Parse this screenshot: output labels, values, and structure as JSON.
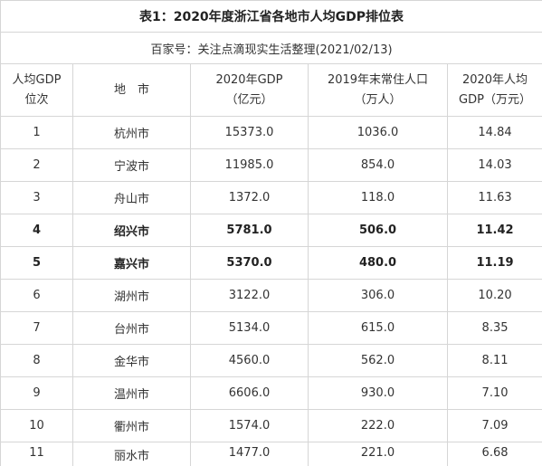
{
  "title": "表1：2020年度浙江省各地市人均GDP排位表",
  "source": "百家号：关注点滴现实生活整理(2021/02/13)",
  "headers": [
    [
      "人均GDP",
      "位次"
    ],
    [
      "地　市"
    ],
    [
      "2020年GDP",
      "（亿元）"
    ],
    [
      "2019年末常住人口",
      "（万人）"
    ],
    [
      "2020年人均",
      "GDP（万元）"
    ]
  ],
  "rows": [
    {
      "rank": "1",
      "city": "杭州市",
      "gdp": "15373.0",
      "pop": "1036.0",
      "per_capita": "14.84",
      "bold": false
    },
    {
      "rank": "2",
      "city": "宁波市",
      "gdp": "11985.0",
      "pop": "854.0",
      "per_capita": "14.03",
      "bold": false
    },
    {
      "rank": "3",
      "city": "舟山市",
      "gdp": "1372.0",
      "pop": "118.0",
      "per_capita": "11.63",
      "bold": false
    },
    {
      "rank": "4",
      "city": "绍兴市",
      "gdp": "5781.0",
      "pop": "506.0",
      "per_capita": "11.42",
      "bold": true
    },
    {
      "rank": "5",
      "city": "嘉兴市",
      "gdp": "5370.0",
      "pop": "480.0",
      "per_capita": "11.19",
      "bold": true
    },
    {
      "rank": "6",
      "city": "湖州市",
      "gdp": "3122.0",
      "pop": "306.0",
      "per_capita": "10.20",
      "bold": false
    },
    {
      "rank": "7",
      "city": "台州市",
      "gdp": "5134.0",
      "pop": "615.0",
      "per_capita": "8.35",
      "bold": false
    },
    {
      "rank": "8",
      "city": "金华市",
      "gdp": "4560.0",
      "pop": "562.0",
      "per_capita": "8.11",
      "bold": false
    },
    {
      "rank": "9",
      "city": "温州市",
      "gdp": "6606.0",
      "pop": "930.0",
      "per_capita": "7.10",
      "bold": false
    },
    {
      "rank": "10",
      "city": "衢州市",
      "gdp": "1574.0",
      "pop": "222.0",
      "per_capita": "7.09",
      "bold": false
    },
    {
      "rank": "11",
      "city": "丽水市",
      "gdp": "1477.0",
      "pop": "221.0",
      "per_capita": "6.68",
      "bold": false
    }
  ],
  "colors": {
    "border": "#d6d6d6",
    "text": "#333333",
    "background": "#ffffff"
  }
}
